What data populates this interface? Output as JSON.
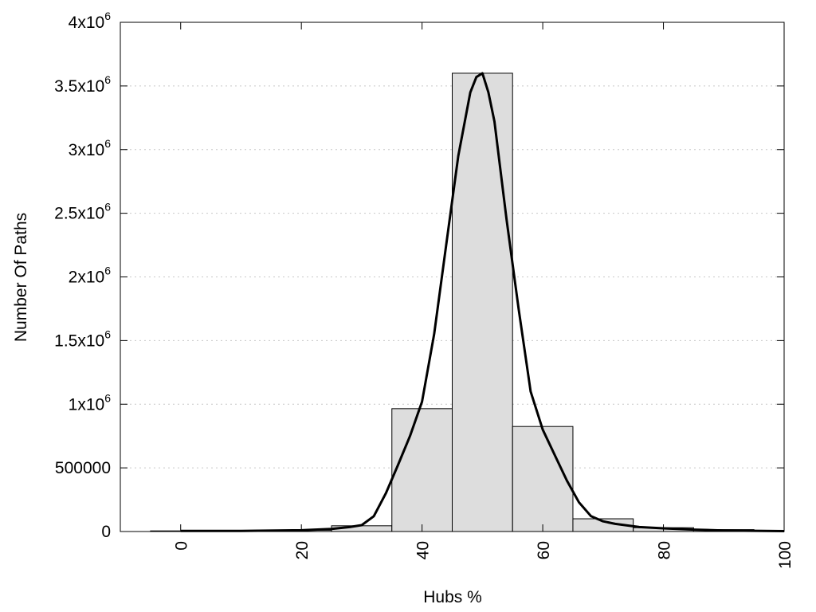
{
  "chart_data": {
    "type": "bar",
    "xlabel": "Hubs %",
    "ylabel": "Number Of Paths",
    "xlim": [
      -10,
      100
    ],
    "ylim": [
      0,
      4000000
    ],
    "bin_width": 10,
    "bars": [
      {
        "x": 0,
        "value": 5000
      },
      {
        "x": 10,
        "value": 5000
      },
      {
        "x": 20,
        "value": 10000
      },
      {
        "x": 30,
        "value": 45000
      },
      {
        "x": 40,
        "value": 965000
      },
      {
        "x": 50,
        "value": 3600000
      },
      {
        "x": 60,
        "value": 825000
      },
      {
        "x": 70,
        "value": 100000
      },
      {
        "x": 80,
        "value": 30000
      },
      {
        "x": 90,
        "value": 15000
      }
    ],
    "curve": {
      "x": [
        0,
        10,
        20,
        25,
        28,
        30,
        32,
        34,
        36,
        38,
        40,
        42,
        44,
        46,
        48,
        49,
        50,
        51,
        52,
        54,
        56,
        58,
        60,
        62,
        64,
        66,
        68,
        70,
        72,
        76,
        80,
        85,
        90,
        100
      ],
      "y": [
        5000,
        5000,
        10000,
        20000,
        35000,
        50000,
        120000,
        300000,
        520000,
        750000,
        1020000,
        1550000,
        2250000,
        2950000,
        3450000,
        3570000,
        3600000,
        3450000,
        3220000,
        2450000,
        1750000,
        1100000,
        800000,
        600000,
        400000,
        230000,
        120000,
        80000,
        60000,
        35000,
        25000,
        15000,
        8000,
        3000
      ]
    },
    "x_ticks": [
      {
        "value": 0,
        "label": "0"
      },
      {
        "value": 20,
        "label": "20"
      },
      {
        "value": 40,
        "label": "40"
      },
      {
        "value": 60,
        "label": "60"
      },
      {
        "value": 80,
        "label": "80"
      },
      {
        "value": 100,
        "label": "100"
      }
    ],
    "y_ticks": [
      {
        "value": 0,
        "base": "0",
        "exp": ""
      },
      {
        "value": 500000,
        "base": "500000",
        "exp": ""
      },
      {
        "value": 1000000,
        "base": "1x10",
        "exp": "6"
      },
      {
        "value": 1500000,
        "base": "1.5x10",
        "exp": "6"
      },
      {
        "value": 2000000,
        "base": "2x10",
        "exp": "6"
      },
      {
        "value": 2500000,
        "base": "2.5x10",
        "exp": "6"
      },
      {
        "value": 3000000,
        "base": "3x10",
        "exp": "6"
      },
      {
        "value": 3500000,
        "base": "3.5x10",
        "exp": "6"
      },
      {
        "value": 4000000,
        "base": "4x10",
        "exp": "6"
      }
    ],
    "grid": "horizontal-dotted",
    "legend": "none"
  }
}
